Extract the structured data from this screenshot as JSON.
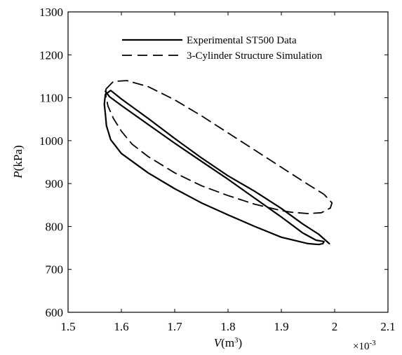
{
  "chart_data": {
    "type": "line",
    "title": "",
    "xlabel_italic": "V",
    "xlabel_rest": "(m",
    "xlabel_sup": "3",
    "xlabel_close": ")",
    "ylabel_italic": "P",
    "ylabel_rest": "(kPa)",
    "x_multiplier": "×10",
    "x_multiplier_exp": "-3",
    "xlim": [
      1.5,
      2.1
    ],
    "ylim": [
      600,
      1300
    ],
    "xticks": [
      1.5,
      1.6,
      1.7,
      1.8,
      1.9,
      2.0,
      2.1
    ],
    "xtick_labels": [
      "1.5",
      "1.6",
      "1.7",
      "1.8",
      "1.9",
      "2",
      "2.1"
    ],
    "yticks": [
      600,
      700,
      800,
      900,
      1000,
      1100,
      1200,
      1300
    ],
    "ytick_labels": [
      "600",
      "700",
      "800",
      "900",
      "1000",
      "1100",
      "1200",
      "1300"
    ],
    "grid": false,
    "legend_position": "top-center",
    "series": [
      {
        "name": "Experimental ST500 Data",
        "style": "solid",
        "color": "#000000",
        "x": [
          1.57,
          1.578,
          1.6,
          1.65,
          1.7,
          1.75,
          1.8,
          1.85,
          1.9,
          1.94,
          1.965,
          1.98,
          1.978,
          1.97,
          1.95,
          1.9,
          1.85,
          1.8,
          1.75,
          1.7,
          1.65,
          1.6,
          1.58,
          1.572,
          1.57,
          1.568,
          1.57,
          1.58,
          1.6,
          1.65,
          1.7,
          1.75,
          1.8,
          1.85,
          1.9,
          1.94,
          1.97,
          1.99
        ],
        "y": [
          1115,
          1102,
          1082,
          1038,
          994,
          952,
          910,
          866,
          822,
          785,
          768,
          765,
          760,
          758,
          760,
          775,
          800,
          827,
          855,
          888,
          925,
          970,
          1002,
          1035,
          1062,
          1085,
          1108,
          1117,
          1097,
          1052,
          1005,
          960,
          918,
          882,
          842,
          806,
          782,
          760
        ]
      },
      {
        "name": "3-Cylinder Structure Simulation",
        "style": "dashed",
        "color": "#000000",
        "x": [
          1.571,
          1.585,
          1.61,
          1.65,
          1.7,
          1.75,
          1.8,
          1.85,
          1.9,
          1.95,
          1.98,
          1.995,
          1.992,
          1.975,
          1.95,
          1.92,
          1.9,
          1.85,
          1.8,
          1.75,
          1.7,
          1.65,
          1.62,
          1.6,
          1.585,
          1.575,
          1.571,
          1.571
        ],
        "y": [
          1120,
          1138,
          1140,
          1126,
          1095,
          1058,
          1018,
          978,
          938,
          898,
          875,
          855,
          843,
          832,
          830,
          833,
          837,
          852,
          872,
          895,
          925,
          963,
          992,
          1022,
          1052,
          1080,
          1103,
          1120
        ]
      }
    ]
  }
}
